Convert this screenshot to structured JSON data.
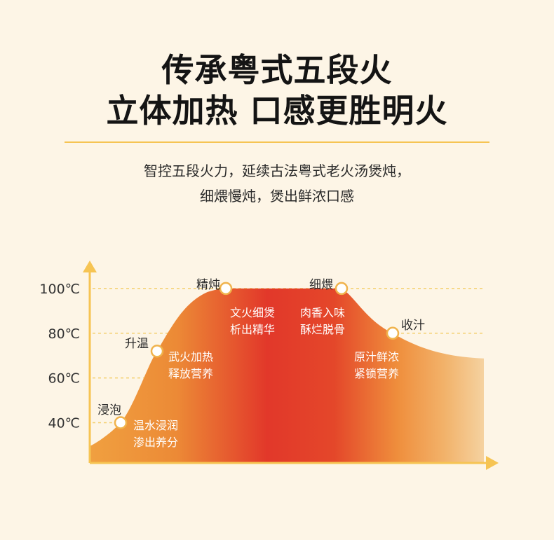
{
  "header": {
    "title_line1": "传承粤式五段火",
    "title_line2": "立体加热  口感更胜明火",
    "subtitle_line1": "智控五段火力，延续古法粤式老火汤煲炖，",
    "subtitle_line2": "细煨慢炖，煲出鲜浓口感"
  },
  "colors": {
    "background": "#fdf5e6",
    "accent_yellow": "#f6c453",
    "fill_outer": "#f0a040",
    "fill_center": "#e2382a",
    "fill_fade": "#f5d2a0"
  },
  "chart_data": {
    "type": "area",
    "y_ticks": [
      "100℃",
      "80℃",
      "60℃",
      "40℃"
    ],
    "y_tick_values": [
      100,
      80,
      60,
      40
    ],
    "ylim": [
      22,
      115
    ],
    "grid": "dashed horizontal",
    "stages": [
      {
        "name": "浸泡",
        "temp": 40,
        "desc": [
          "温水浸润",
          "渗出养分"
        ]
      },
      {
        "name": "升温",
        "temp": 72,
        "desc": [
          "武火加热",
          "释放营养"
        ]
      },
      {
        "name": "精炖",
        "temp": 100,
        "desc": [
          "文火细煲",
          "析出精华"
        ]
      },
      {
        "name": "细煨",
        "temp": 100,
        "desc": [
          "肉香入味",
          "酥烂脱骨"
        ]
      },
      {
        "name": "收汁",
        "temp": 80,
        "desc": [
          "原汁鲜浓",
          "紧锁营养"
        ]
      }
    ]
  }
}
